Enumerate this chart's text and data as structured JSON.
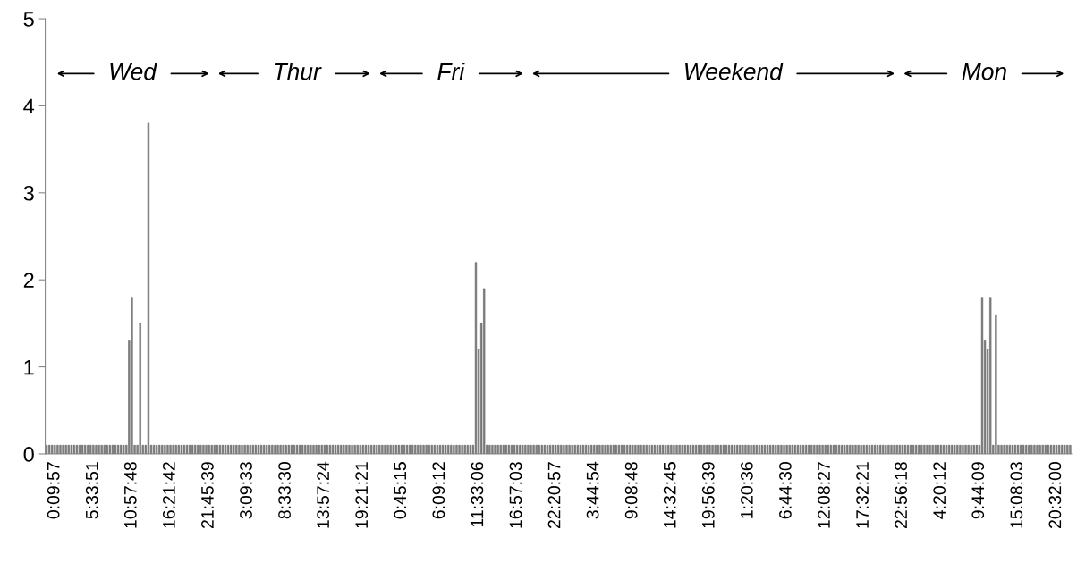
{
  "chart_data": {
    "type": "bar",
    "color": "#8a8a8a",
    "annotations": [
      "Wed",
      "Thur",
      "Fri",
      "Weekend",
      "Mon"
    ],
    "ylim": [
      0,
      5
    ],
    "yticks": [
      0,
      1,
      2,
      3,
      4,
      5
    ],
    "grid": false,
    "legend": false,
    "categories": [
      null,
      null,
      null,
      "0:09:57",
      null,
      null,
      null,
      null,
      null,
      null,
      null,
      null,
      null,
      null,
      null,
      null,
      null,
      "5:33:51",
      null,
      null,
      null,
      null,
      null,
      null,
      null,
      null,
      null,
      null,
      null,
      null,
      null,
      "10:57:48",
      null,
      null,
      null,
      null,
      null,
      null,
      null,
      null,
      null,
      null,
      null,
      null,
      null,
      "16:21:42",
      null,
      null,
      null,
      null,
      null,
      null,
      null,
      null,
      null,
      null,
      null,
      null,
      null,
      "21:45:39",
      null,
      null,
      null,
      null,
      null,
      null,
      null,
      null,
      null,
      null,
      null,
      null,
      null,
      "3:09:33",
      null,
      null,
      null,
      null,
      null,
      null,
      null,
      null,
      null,
      null,
      null,
      null,
      null,
      "8:33:30",
      null,
      null,
      null,
      null,
      null,
      null,
      null,
      null,
      null,
      null,
      null,
      null,
      null,
      "13:57:24",
      null,
      null,
      null,
      null,
      null,
      null,
      null,
      null,
      null,
      null,
      null,
      null,
      null,
      "19:21:21",
      null,
      null,
      null,
      null,
      null,
      null,
      null,
      null,
      null,
      null,
      null,
      null,
      null,
      "0:45:15",
      null,
      null,
      null,
      null,
      null,
      null,
      null,
      null,
      null,
      null,
      null,
      null,
      null,
      "6:09:12",
      null,
      null,
      null,
      null,
      null,
      null,
      null,
      null,
      null,
      null,
      null,
      null,
      null,
      "11:33:06",
      null,
      null,
      null,
      null,
      null,
      null,
      null,
      null,
      null,
      null,
      null,
      null,
      null,
      "16:57:03",
      null,
      null,
      null,
      null,
      null,
      null,
      null,
      null,
      null,
      null,
      null,
      null,
      null,
      "22:20:57",
      null,
      null,
      null,
      null,
      null,
      null,
      null,
      null,
      null,
      null,
      null,
      null,
      null,
      "3:44:54",
      null,
      null,
      null,
      null,
      null,
      null,
      null,
      null,
      null,
      null,
      null,
      null,
      null,
      "9:08:48",
      null,
      null,
      null,
      null,
      null,
      null,
      null,
      null,
      null,
      null,
      null,
      null,
      null,
      "14:32:45",
      null,
      null,
      null,
      null,
      null,
      null,
      null,
      null,
      null,
      null,
      null,
      null,
      null,
      "19:56:39",
      null,
      null,
      null,
      null,
      null,
      null,
      null,
      null,
      null,
      null,
      null,
      null,
      null,
      "1:20:36",
      null,
      null,
      null,
      null,
      null,
      null,
      null,
      null,
      null,
      null,
      null,
      null,
      null,
      "6:44:30",
      null,
      null,
      null,
      null,
      null,
      null,
      null,
      null,
      null,
      null,
      null,
      null,
      null,
      "12:08:27",
      null,
      null,
      null,
      null,
      null,
      null,
      null,
      null,
      null,
      null,
      null,
      null,
      null,
      "17:32:21",
      null,
      null,
      null,
      null,
      null,
      null,
      null,
      null,
      null,
      null,
      null,
      null,
      null,
      "22:56:18",
      null,
      null,
      null,
      null,
      null,
      null,
      null,
      null,
      null,
      null,
      null,
      null,
      null,
      "4:20:12",
      null,
      null,
      null,
      null,
      null,
      null,
      null,
      null,
      null,
      null,
      null,
      null,
      null,
      "9:44:09",
      null,
      null,
      null,
      null,
      null,
      null,
      null,
      null,
      null,
      null,
      null,
      null,
      null,
      "15:08:03",
      null,
      null,
      null,
      null,
      null,
      null,
      null,
      null,
      null,
      null,
      null,
      null,
      null,
      "20:32:00",
      null,
      null,
      null,
      null,
      null
    ],
    "values": [
      0.1,
      0.1,
      0.1,
      0.1,
      0.1,
      0.1,
      0.1,
      0.1,
      0.1,
      0.1,
      0.1,
      0.1,
      0.1,
      0.1,
      0.1,
      0.1,
      0.1,
      0.1,
      0.1,
      0.1,
      0.1,
      0.1,
      0.1,
      0.1,
      0.1,
      0.1,
      0.1,
      0.1,
      0.1,
      0.1,
      1.3,
      1.8,
      0.1,
      0.1,
      1.5,
      0.1,
      0.1,
      3.8,
      0.1,
      0.1,
      0.1,
      0.1,
      0.1,
      0.1,
      0.1,
      0.1,
      0.1,
      0.1,
      0.1,
      0.1,
      0.1,
      0.1,
      0.1,
      0.1,
      0.1,
      0.1,
      0.1,
      0.1,
      0.1,
      0.1,
      0.1,
      0.1,
      0.1,
      0.1,
      0.1,
      0.1,
      0.1,
      0.1,
      0.1,
      0.1,
      0.1,
      0.1,
      0.1,
      0.1,
      0.1,
      0.1,
      0.1,
      0.1,
      0.1,
      0.1,
      0.1,
      0.1,
      0.1,
      0.1,
      0.1,
      0.1,
      0.1,
      0.1,
      0.1,
      0.1,
      0.1,
      0.1,
      0.1,
      0.1,
      0.1,
      0.1,
      0.1,
      0.1,
      0.1,
      0.1,
      0.1,
      0.1,
      0.1,
      0.1,
      0.1,
      0.1,
      0.1,
      0.1,
      0.1,
      0.1,
      0.1,
      0.1,
      0.1,
      0.1,
      0.1,
      0.1,
      0.1,
      0.1,
      0.1,
      0.1,
      0.1,
      0.1,
      0.1,
      0.1,
      0.1,
      0.1,
      0.1,
      0.1,
      0.1,
      0.1,
      0.1,
      0.1,
      0.1,
      0.1,
      0.1,
      0.1,
      0.1,
      0.1,
      0.1,
      0.1,
      0.1,
      0.1,
      0.1,
      0.1,
      0.1,
      0.1,
      0.1,
      0.1,
      0.1,
      0.1,
      0.1,
      0.1,
      0.1,
      0.1,
      0.1,
      0.1,
      2.2,
      1.2,
      1.5,
      1.9,
      0.1,
      0.1,
      0.1,
      0.1,
      0.1,
      0.1,
      0.1,
      0.1,
      0.1,
      0.1,
      0.1,
      0.1,
      0.1,
      0.1,
      0.1,
      0.1,
      0.1,
      0.1,
      0.1,
      0.1,
      0.1,
      0.1,
      0.1,
      0.1,
      0.1,
      0.1,
      0.1,
      0.1,
      0.1,
      0.1,
      0.1,
      0.1,
      0.1,
      0.1,
      0.1,
      0.1,
      0.1,
      0.1,
      0.1,
      0.1,
      0.1,
      0.1,
      0.1,
      0.1,
      0.1,
      0.1,
      0.1,
      0.1,
      0.1,
      0.1,
      0.1,
      0.1,
      0.1,
      0.1,
      0.1,
      0.1,
      0.1,
      0.1,
      0.1,
      0.1,
      0.1,
      0.1,
      0.1,
      0.1,
      0.1,
      0.1,
      0.1,
      0.1,
      0.1,
      0.1,
      0.1,
      0.1,
      0.1,
      0.1,
      0.1,
      0.1,
      0.1,
      0.1,
      0.1,
      0.1,
      0.1,
      0.1,
      0.1,
      0.1,
      0.1,
      0.1,
      0.1,
      0.1,
      0.1,
      0.1,
      0.1,
      0.1,
      0.1,
      0.1,
      0.1,
      0.1,
      0.1,
      0.1,
      0.1,
      0.1,
      0.1,
      0.1,
      0.1,
      0.1,
      0.1,
      0.1,
      0.1,
      0.1,
      0.1,
      0.1,
      0.1,
      0.1,
      0.1,
      0.1,
      0.1,
      0.1,
      0.1,
      0.1,
      0.1,
      0.1,
      0.1,
      0.1,
      0.1,
      0.1,
      0.1,
      0.1,
      0.1,
      0.1,
      0.1,
      0.1,
      0.1,
      0.1,
      0.1,
      0.1,
      0.1,
      0.1,
      0.1,
      0.1,
      0.1,
      0.1,
      0.1,
      0.1,
      0.1,
      0.1,
      0.1,
      0.1,
      0.1,
      0.1,
      0.1,
      0.1,
      0.1,
      0.1,
      0.1,
      0.1,
      0.1,
      0.1,
      0.1,
      0.1,
      0.1,
      0.1,
      0.1,
      0.1,
      0.1,
      0.1,
      0.1,
      0.1,
      0.1,
      0.1,
      0.1,
      0.1,
      0.1,
      0.1,
      0.1,
      0.1,
      0.1,
      0.1,
      0.1,
      0.1,
      0.1,
      0.1,
      1.8,
      1.3,
      1.2,
      1.8,
      0.1,
      1.6,
      0.1,
      0.1,
      0.1,
      0.1,
      0.1,
      0.1,
      0.1,
      0.1,
      0.1,
      0.1,
      0.1,
      0.1,
      0.1,
      0.1,
      0.1,
      0.1,
      0.1,
      0.1,
      0.1,
      0.1,
      0.1,
      0.1,
      0.1,
      0.1,
      0.1,
      0.1,
      0.1
    ]
  }
}
